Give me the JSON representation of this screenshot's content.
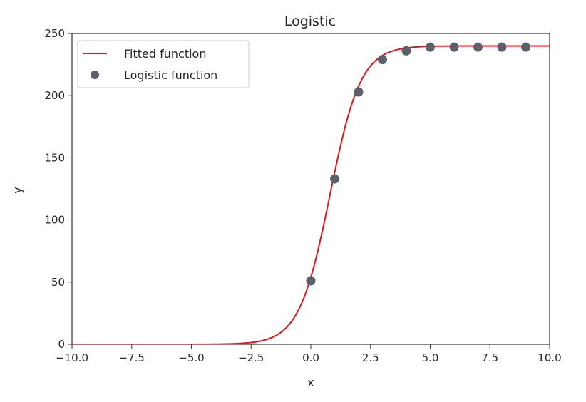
{
  "chart_data": {
    "type": "scatter",
    "title": "Logistic",
    "xlabel": "x",
    "ylabel": "y",
    "xlim": [
      -10,
      10
    ],
    "ylim": [
      0,
      250
    ],
    "xticks": [
      -10,
      -7.5,
      -5,
      -2.5,
      0,
      2.5,
      5,
      7.5,
      10
    ],
    "xtick_labels": [
      "−10.0",
      "−7.5",
      "−5.0",
      "−2.5",
      "0.0",
      "2.5",
      "5.0",
      "7.5",
      "10.0"
    ],
    "yticks": [
      0,
      50,
      100,
      150,
      200,
      250
    ],
    "ytick_labels": [
      "0",
      "50",
      "100",
      "150",
      "200",
      "250"
    ],
    "grid": false,
    "legend_position": "top-left",
    "series": [
      {
        "name": "Fitted function",
        "kind": "line",
        "color": "#e8121b",
        "model": "logistic",
        "params": {
          "L": 240,
          "k": 1.55,
          "x0": 0.8
        },
        "x_range": [
          -10,
          10
        ]
      },
      {
        "name": "Logistic function",
        "kind": "scatter",
        "color": "#5a616b",
        "x": [
          0,
          1,
          2,
          3,
          4,
          5,
          6,
          7,
          8,
          9
        ],
        "y": [
          51,
          133,
          203,
          229,
          236,
          239,
          239,
          239,
          239,
          239
        ]
      }
    ]
  }
}
